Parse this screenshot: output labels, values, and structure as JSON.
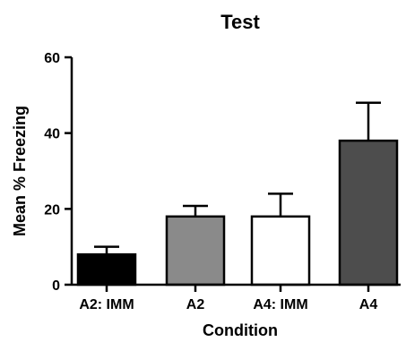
{
  "chart_data": {
    "type": "bar",
    "title": "Test",
    "xlabel": "Condition",
    "ylabel": "Mean  % Freezing",
    "categories": [
      "A2: IMM",
      "A2",
      "A4: IMM",
      "A4"
    ],
    "values": [
      8,
      18,
      18,
      38
    ],
    "errors": [
      2,
      2.8,
      6,
      10
    ],
    "ylim": [
      0,
      60
    ],
    "yticks": [
      0,
      20,
      40,
      60
    ],
    "bar_colors": [
      "#000000",
      "#8a8a8a",
      "#ffffff",
      "#4d4d4d"
    ],
    "bar_outline": "#000000",
    "grid": false,
    "legend": "none"
  }
}
